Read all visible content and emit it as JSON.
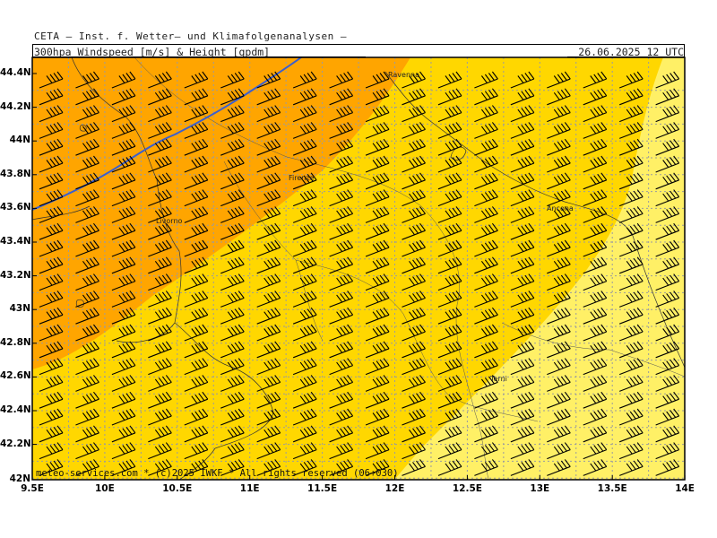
{
  "header": {
    "title": "CETA — Inst. f. Wetter— und Klimafolgenanalysen —",
    "subtitle": "300hpa_Windspeed_[m/s]_&_Height_[gpdm]",
    "datetime": "26.06.2025 12 UTC"
  },
  "footer": "meteo-services.com * (c)2025 IWKF * All rights reserved (06+030)",
  "axes": {
    "y_ticks": [
      "44.4N",
      "44.2N",
      "44N",
      "43.8N",
      "43.6N",
      "43.4N",
      "43.2N",
      "43N",
      "42.8N",
      "42.6N",
      "42.4N",
      "42.2N",
      "42N"
    ],
    "x_ticks": [
      "9.5E",
      "10E",
      "10.5E",
      "11E",
      "11.5E",
      "12E",
      "12.5E",
      "13E",
      "13.5E",
      "14E"
    ]
  },
  "cities": {
    "ravenna": "Ravenna",
    "firenze": "Firenze",
    "livorno": "Livorno",
    "ancona": "Ancona",
    "terni": "Terni"
  },
  "colors": {
    "zone_strong": "#ffa500",
    "zone_mid": "#ffd700",
    "zone_weak": "#fff066",
    "contour": "#3a5fd0",
    "barb": "#000000",
    "grid": "#9a9aa0"
  }
}
